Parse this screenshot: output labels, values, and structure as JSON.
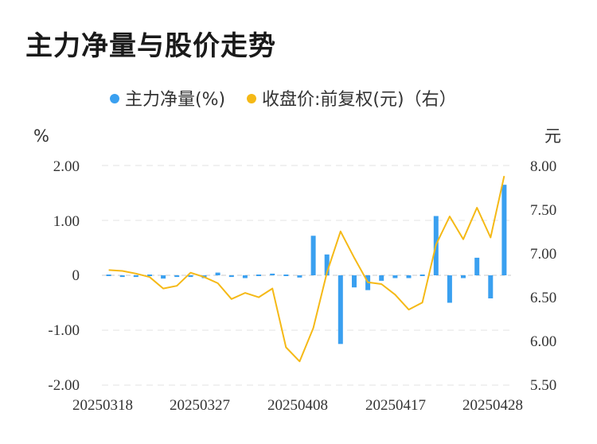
{
  "chart_data": {
    "type": "bar",
    "title": "主力净量与股价走势",
    "legend": {
      "placement": "top-center",
      "items": [
        {
          "label": "主力净量(%)",
          "color": "#3aa0f0"
        },
        {
          "label": "收盘价:前复权(元)（右）",
          "color": "#f5b916"
        }
      ]
    },
    "left_axis": {
      "unit": "%",
      "ticks": [
        "2.00",
        "1.00",
        "0",
        "-1.00",
        "-2.00"
      ],
      "ylim": [
        -2,
        2
      ]
    },
    "right_axis": {
      "unit": "元",
      "ticks": [
        "8.00",
        "7.50",
        "7.00",
        "6.50",
        "6.00",
        "5.50"
      ],
      "ylim": [
        5.5,
        8
      ]
    },
    "x_tick_labels": [
      "20250318",
      "20250327",
      "20250408",
      "20250417",
      "20250428"
    ],
    "grid": "horizontal-dashed",
    "series": [
      {
        "name": "主力净量(%)",
        "type": "bar",
        "color": "#3aa0f0",
        "values": [
          -0.02,
          -0.03,
          -0.03,
          0,
          -0.06,
          -0.03,
          -0.03,
          -0.05,
          0.05,
          -0.03,
          -0.05,
          -0.02,
          0.03,
          -0.01,
          -0.04,
          0.72,
          0.38,
          -1.25,
          -0.22,
          -0.27,
          -0.1,
          -0.05,
          -0.05,
          -0.02,
          1.08,
          -0.5,
          -0.05,
          0.32,
          -0.42,
          1.65
        ]
      },
      {
        "name": "收盘价:前复权(元)（右）",
        "type": "line",
        "color": "#f5b916",
        "values": [
          6.81,
          6.8,
          6.77,
          6.73,
          6.6,
          6.63,
          6.78,
          6.73,
          6.66,
          6.48,
          6.55,
          6.5,
          6.6,
          5.93,
          5.77,
          6.15,
          6.78,
          7.25,
          6.95,
          6.67,
          6.65,
          6.53,
          6.36,
          6.44,
          7.1,
          7.42,
          7.16,
          7.52,
          7.18,
          7.88
        ]
      }
    ]
  }
}
